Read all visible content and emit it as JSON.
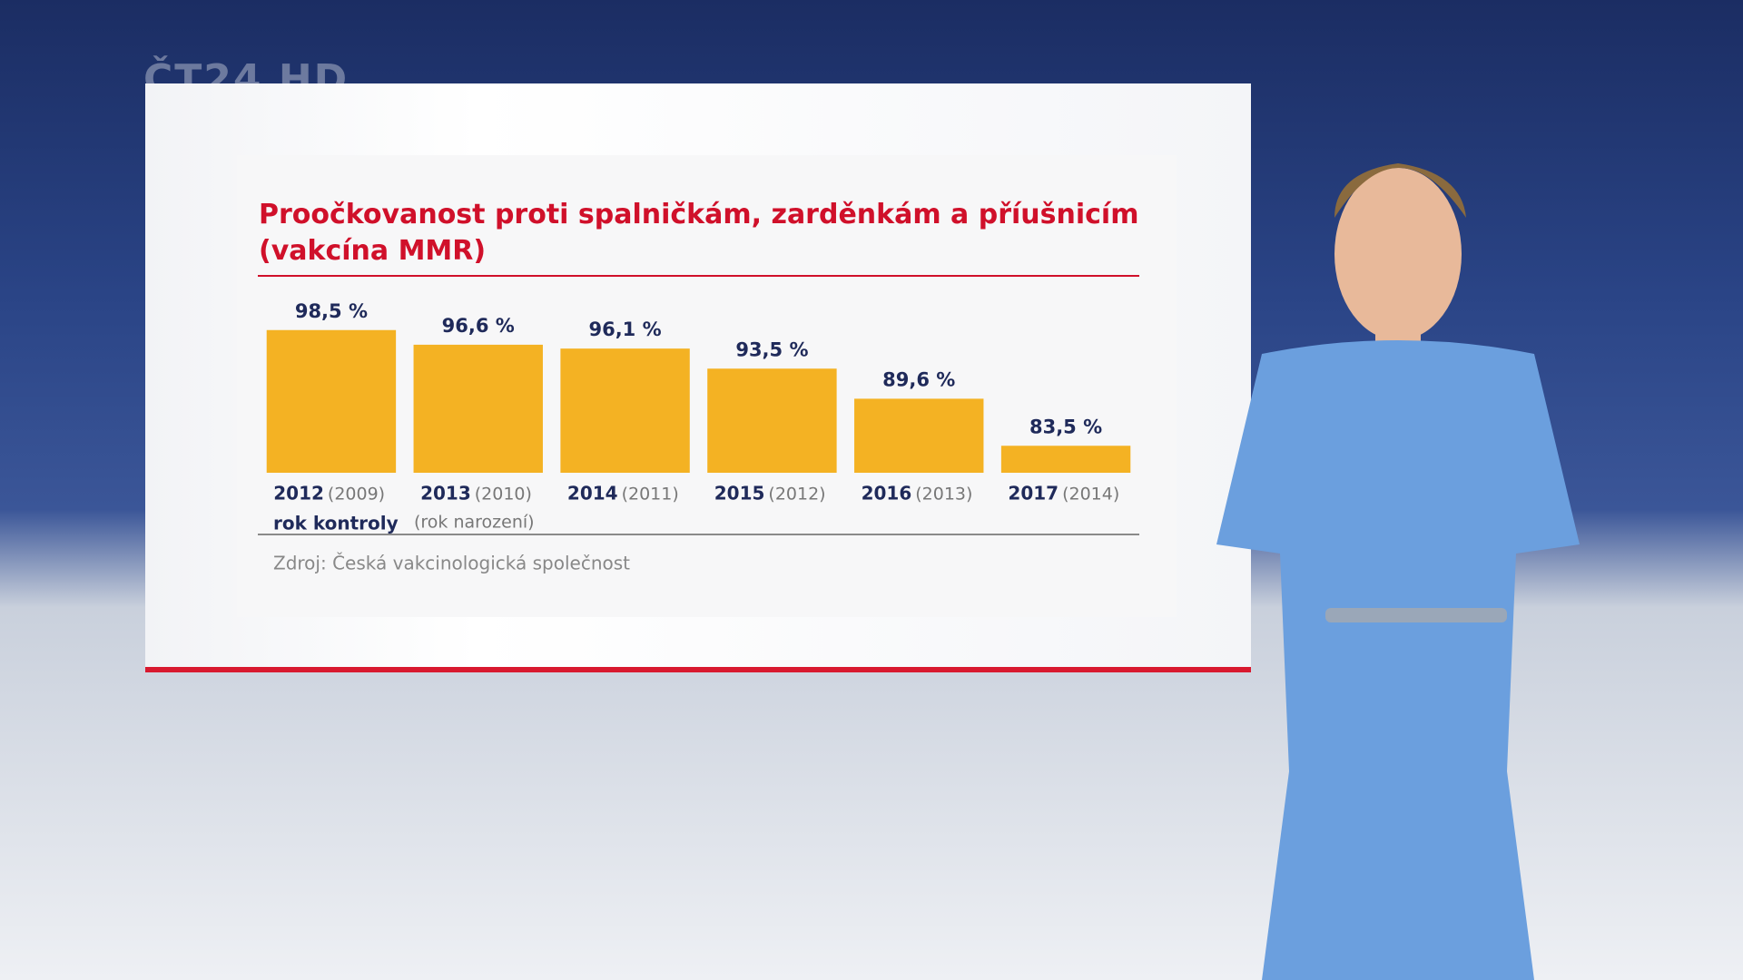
{
  "chart_data": {
    "type": "bar",
    "title": "Proočkovanost proti spalničkám, zarděnkám a příušnicím (vakcína MMR)",
    "categories": [
      "2012",
      "2013",
      "2014",
      "2015",
      "2016",
      "2017"
    ],
    "birth_years": [
      "(2009)",
      "(2010)",
      "(2011)",
      "(2012)",
      "(2013)",
      "(2014)"
    ],
    "values": [
      98.5,
      96.6,
      96.1,
      93.5,
      89.6,
      83.5
    ],
    "value_labels": [
      "98,5 %",
      "96,6 %",
      "96,1 %",
      "93,5 %",
      "89,6 %",
      "83,5 %"
    ],
    "color": "#f4b223",
    "ylim": [
      80,
      100
    ],
    "x_label": "rok kontroly",
    "x_label_note": "(rok narození)",
    "source": "Zdroj: Česká vakcinologická společnost"
  },
  "channel_logo": "ČT24 HD"
}
